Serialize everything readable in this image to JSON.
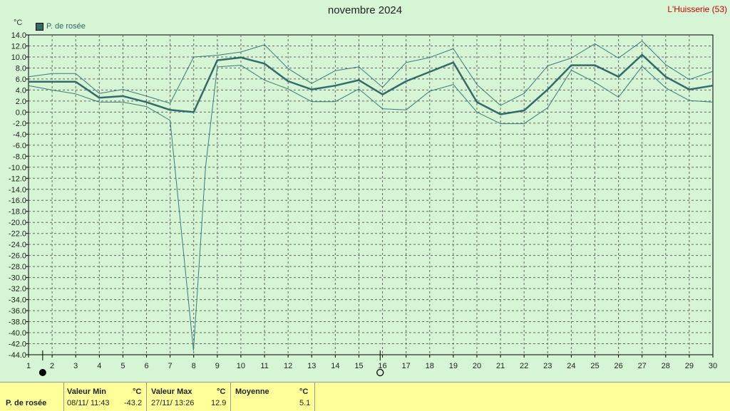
{
  "title": "novembre 2024",
  "station": "L'Huisserie (53)",
  "unit": "°C",
  "legend_label": "P. de rosée",
  "footer": {
    "row_label": "P. de rosée",
    "min_header": "Valeur Min",
    "max_header": "Valeur Max",
    "avg_header": "Moyenne",
    "unit": "°C",
    "min_date": "08/11/  11:43",
    "min_value": "-43.2",
    "max_date": "27/11/  13:26",
    "max_value": "12.9",
    "avg_value": "5.1"
  },
  "chart_data": {
    "type": "line",
    "title": "novembre 2024",
    "ylabel": "°C",
    "ylim": [
      -44,
      14
    ],
    "xlim": [
      1,
      30
    ],
    "yticks": [
      "14.0",
      "12.0",
      "10.0",
      "8.0",
      "6.0",
      "4.0",
      "2.0",
      "0.0",
      "-2.0",
      "-4.0",
      "-6.0",
      "-8.0",
      "-10.0",
      "-12.0",
      "-14.0",
      "-16.0",
      "-18.0",
      "-20.0",
      "-22.0",
      "-24.0",
      "-26.0",
      "-28.0",
      "-30.0",
      "-32.0",
      "-34.0",
      "-36.0",
      "-38.0",
      "-40.0",
      "-42.0",
      "-44.0"
    ],
    "xticks": [
      "1",
      "2",
      "3",
      "4",
      "5",
      "6",
      "7",
      "8",
      "9",
      "10",
      "11",
      "12",
      "13",
      "14",
      "15",
      "16",
      "17",
      "18",
      "19",
      "20",
      "21",
      "22",
      "23",
      "24",
      "25",
      "26",
      "27",
      "28",
      "29",
      "30"
    ],
    "grid": true,
    "legend": "top-left",
    "colors": {
      "mean": "#336b6b",
      "minmax": "#3d7a7a",
      "grid": "#666666"
    },
    "series": [
      {
        "name": "P. de rosée",
        "role": "mean",
        "x": [
          1,
          2,
          3,
          4,
          5,
          6,
          7,
          8,
          9,
          10,
          11,
          12,
          13,
          14,
          15,
          16,
          17,
          18,
          19,
          20,
          21,
          22,
          23,
          24,
          25,
          26,
          27,
          28,
          29,
          30
        ],
        "values": [
          5.5,
          5.5,
          5.5,
          2.6,
          2.9,
          1.8,
          0.4,
          0.0,
          9.4,
          9.9,
          8.8,
          5.6,
          4.1,
          4.8,
          5.8,
          3.2,
          5.6,
          7.3,
          9.0,
          1.8,
          -0.4,
          0.3,
          4.1,
          8.5,
          8.5,
          6.4,
          10.4,
          6.4,
          4.1,
          4.8
        ]
      },
      {
        "role": "max",
        "x": [
          1,
          2,
          3,
          4,
          5,
          6,
          7,
          8,
          9,
          10,
          11,
          12,
          13,
          14,
          15,
          16,
          17,
          18,
          19,
          20,
          21,
          22,
          23,
          24,
          25,
          26,
          27,
          28,
          29,
          30
        ],
        "values": [
          6.4,
          7.0,
          7.0,
          3.4,
          4.1,
          2.9,
          1.6,
          10.0,
          10.3,
          10.9,
          12.2,
          7.9,
          5.2,
          7.5,
          8.2,
          4.5,
          9.0,
          9.9,
          11.5,
          5.0,
          1.2,
          3.4,
          8.4,
          9.8,
          12.4,
          9.8,
          12.9,
          8.6,
          5.9,
          7.4
        ]
      },
      {
        "role": "min",
        "x": [
          1,
          2,
          3,
          4,
          5,
          6,
          7,
          7.99,
          8.5,
          9,
          10,
          11,
          12,
          13,
          14,
          15,
          16,
          17,
          18,
          19,
          20,
          21,
          22,
          23,
          24,
          25,
          26,
          27,
          28,
          29,
          30
        ],
        "values": [
          4.8,
          4.0,
          3.3,
          1.8,
          1.8,
          1.0,
          -1.5,
          -43.2,
          -10,
          8.2,
          8.5,
          5.8,
          4.2,
          1.9,
          1.9,
          4.2,
          0.6,
          0.4,
          3.8,
          5.0,
          0.0,
          -2.1,
          -2.1,
          0.8,
          7.6,
          5.4,
          2.7,
          8.3,
          4.4,
          2.1,
          1.8
        ]
      }
    ],
    "markers": [
      {
        "day": 1.6,
        "symbol": "filled-circle"
      },
      {
        "day": 15.9,
        "symbol": "open-circle"
      }
    ]
  }
}
